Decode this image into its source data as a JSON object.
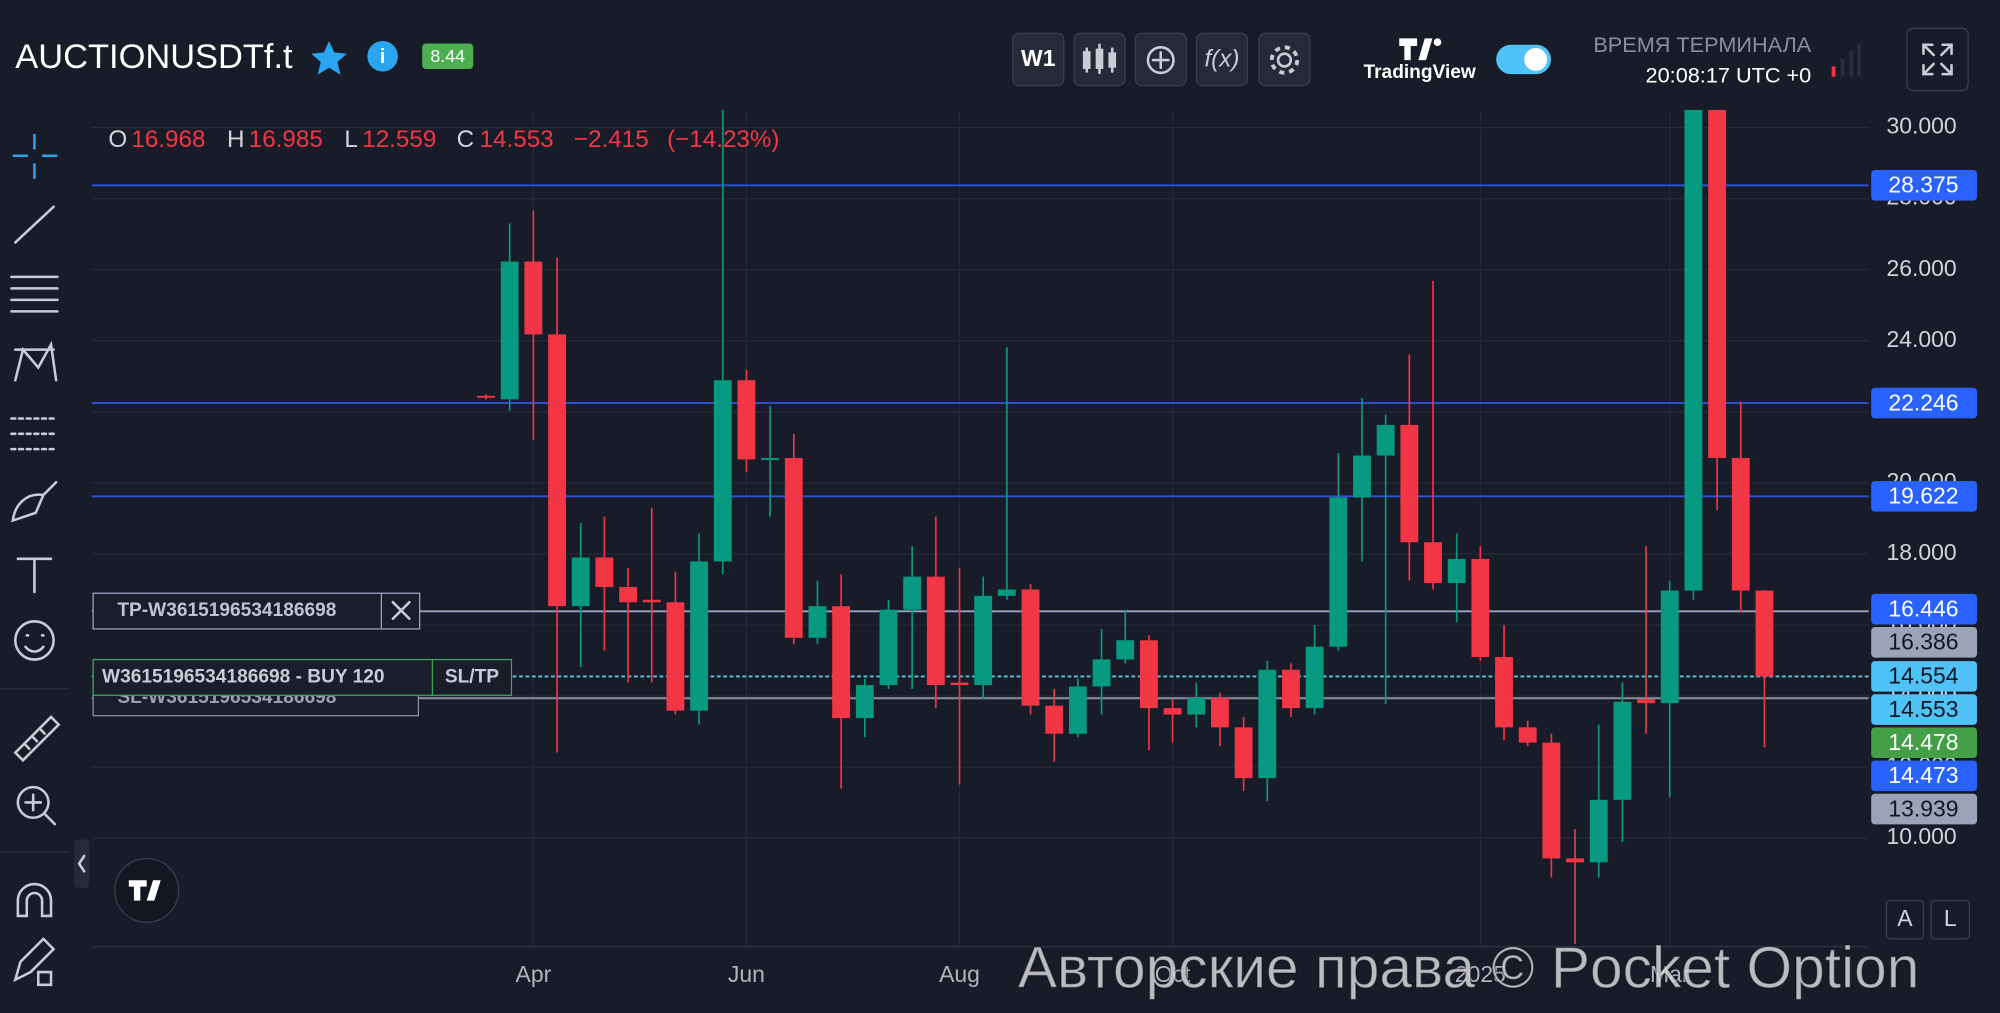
{
  "header": {
    "symbol": "AUCTIONUSDTf.t",
    "badge": "8.44",
    "timeframe": "W1",
    "brand": "TradingView",
    "time_caption": "ВРЕМЯ ТЕРМИНАЛА",
    "time": "20:08:17 UTC +0"
  },
  "chart_data": {
    "type": "candlestick",
    "legend": {
      "o": "O",
      "h": "H",
      "l": "L",
      "c": "C",
      "change": "−2.415",
      "change_pct": "(−14.23%)"
    },
    "up_color": "#089981",
    "down_color": "#f23645",
    "open": [
      22.45,
      22.35,
      26.23,
      24.18,
      16.53,
      17.9,
      17.07,
      16.71,
      16.64,
      13.59,
      17.79,
      22.89,
      20.66,
      20.7,
      15.64,
      16.53,
      13.38,
      14.31,
      16.43,
      17.36,
      14.38,
      14.31,
      16.82,
      17.0,
      13.73,
      12.94,
      14.27,
      15.03,
      15.57,
      13.66,
      13.48,
      13.95,
      13.12,
      11.69,
      14.74,
      13.66,
      15.39,
      19.59,
      20.77,
      21.63,
      18.33,
      17.18,
      17.86,
      15.1,
      13.12,
      12.69,
      9.43,
      9.32,
      11.08,
      13.91,
      13.8,
      16.97,
      30.5,
      20.7,
      16.968
    ],
    "high": [
      22.5,
      27.3,
      27.67,
      26.34,
      18.87,
      19.05,
      17.6,
      19.3,
      17.5,
      18.58,
      30.5,
      23.18,
      22.17,
      21.38,
      17.25,
      17.43,
      14.49,
      16.71,
      18.22,
      19.05,
      17.6,
      17.36,
      23.82,
      17.15,
      14.2,
      14.49,
      15.89,
      16.43,
      15.71,
      13.91,
      14.38,
      14.09,
      13.41,
      14.99,
      14.92,
      16.0,
      20.84,
      22.39,
      21.92,
      23.61,
      25.69,
      18.58,
      18.22,
      16.0,
      13.3,
      12.94,
      10.25,
      13.2,
      14.38,
      18.22,
      17.25,
      30.5,
      30.5,
      22.28,
      16.985
    ],
    "low": [
      22.35,
      22.03,
      21.2,
      12.41,
      14.81,
      15.28,
      14.38,
      14.38,
      13.48,
      13.2,
      17.43,
      20.31,
      19.05,
      15.46,
      15.46,
      11.4,
      12.84,
      14.2,
      14.2,
      13.66,
      11.51,
      13.91,
      16.71,
      13.48,
      12.15,
      12.84,
      13.48,
      14.92,
      12.48,
      12.69,
      13.12,
      12.59,
      11.33,
      11.04,
      13.41,
      13.48,
      15.28,
      17.79,
      13.77,
      17.25,
      17.0,
      16.07,
      14.99,
      12.76,
      12.59,
      8.89,
      7.02,
      8.89,
      9.89,
      12.94,
      11.15,
      16.71,
      19.23,
      16.36,
      12.559
    ],
    "close": [
      22.4,
      26.23,
      24.18,
      16.53,
      17.9,
      17.07,
      16.64,
      16.64,
      13.59,
      17.79,
      22.89,
      20.66,
      20.7,
      15.64,
      16.53,
      13.38,
      14.31,
      16.43,
      17.36,
      14.31,
      14.31,
      16.82,
      17.0,
      13.73,
      12.94,
      14.27,
      15.03,
      15.57,
      13.66,
      13.48,
      13.95,
      13.12,
      11.69,
      14.74,
      13.66,
      15.39,
      19.59,
      20.77,
      21.63,
      18.33,
      17.18,
      17.86,
      15.1,
      13.12,
      12.69,
      9.43,
      9.32,
      11.08,
      13.84,
      13.8,
      16.97,
      30.5,
      20.7,
      16.97,
      14.553
    ],
    "xlim": [
      -16.65,
      58.4
    ],
    "xticks": [
      {
        "value": 2,
        "label": "Apr"
      },
      {
        "value": 11,
        "label": "Jun"
      },
      {
        "value": 20,
        "label": "Aug"
      },
      {
        "value": 29,
        "label": "Oct"
      },
      {
        "value": 42,
        "label": "2025"
      },
      {
        "value": 50,
        "label": "Mar"
      }
    ],
    "ylim": [
      6.95,
      30.5
    ],
    "yticks": [
      {
        "value": 10,
        "label": "10.000"
      },
      {
        "value": 12,
        "label": "12.000"
      },
      {
        "value": 14,
        "label": "14.000"
      },
      {
        "value": 16,
        "label": "16.000"
      },
      {
        "value": 18,
        "label": "18.000"
      },
      {
        "value": 20,
        "label": "20.000"
      },
      {
        "value": 22,
        "label": "22.000"
      },
      {
        "value": 24,
        "label": "24.000"
      },
      {
        "value": 26,
        "label": "26.000"
      },
      {
        "value": 28,
        "label": "28.000"
      },
      {
        "value": 30,
        "label": "30.000"
      }
    ],
    "grid": true,
    "price_labels": [
      {
        "value": 28.375,
        "color": "#2962ff",
        "line": "#2c52d8"
      },
      {
        "value": 22.246,
        "color": "#2962ff",
        "line": "#2c52d8"
      },
      {
        "value": 19.622,
        "color": "#2962ff",
        "line": "#2c52d8"
      },
      {
        "value": 16.446,
        "color": "#2962ff"
      },
      {
        "value": 16.386,
        "color": "#9aa3b8",
        "line": "#9aa3c0"
      },
      {
        "value": 14.554,
        "color": "#4fc3f7"
      },
      {
        "value": 14.553,
        "color": "#4fc3f7",
        "line": "#5fc4d8"
      },
      {
        "value": 14.478,
        "color": "#43a047"
      },
      {
        "value": 14.473,
        "color": "#2962ff"
      },
      {
        "value": 13.939,
        "color": "#9aa3b8",
        "line": "#8a90a0"
      }
    ]
  },
  "orders": {
    "tp": "TP-W3615196534186698",
    "buy": "W3615196534186698 - BUY 120",
    "sltp": "SL/TP",
    "sl": "SL-W3615196534186698"
  },
  "scale_buttons": {
    "auto": "A",
    "log": "L"
  },
  "watermark": "Авторские права © Pocket Option"
}
